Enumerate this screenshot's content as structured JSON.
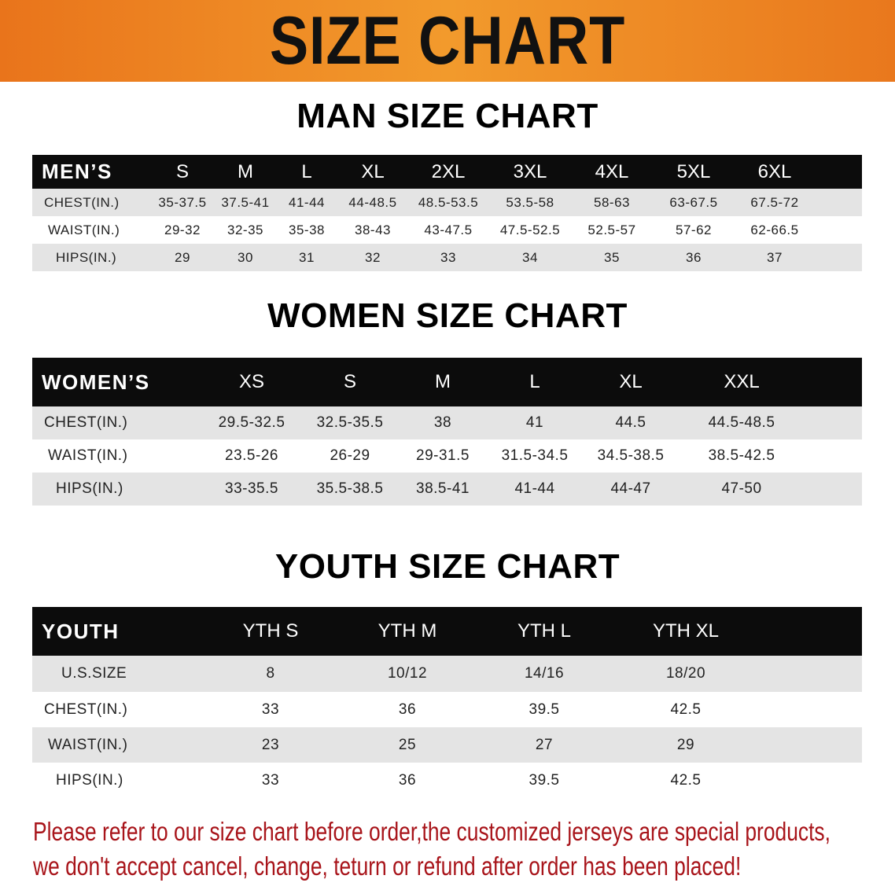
{
  "banner": {
    "title": "SIZE CHART",
    "color": "#ee8421"
  },
  "tables": [
    {
      "title": "MAN SIZE CHART",
      "header": [
        "MEN’S",
        "S",
        "M",
        "L",
        "XL",
        "2XL",
        "3XL",
        "4XL",
        "5XL",
        "6XL"
      ],
      "rows": [
        [
          "CHEST(IN.)",
          "35-37.5",
          "37.5-41",
          "41-44",
          "44-48.5",
          "48.5-53.5",
          "53.5-58",
          "58-63",
          "63-67.5",
          "67.5-72"
        ],
        [
          "WAIST(IN.)",
          "29-32",
          "32-35",
          "35-38",
          "38-43",
          "43-47.5",
          "47.5-52.5",
          "52.5-57",
          "57-62",
          "62-66.5"
        ],
        [
          "HIPS(IN.)",
          "29",
          "30",
          "31",
          "32",
          "33",
          "34",
          "35",
          "36",
          "37"
        ]
      ]
    },
    {
      "title": "WOMEN SIZE CHART",
      "header": [
        "WOMEN’S",
        "XS",
        "S",
        "M",
        "L",
        "XL",
        "XXL"
      ],
      "rows": [
        [
          "CHEST(IN.)",
          "29.5-32.5",
          "32.5-35.5",
          "38",
          "41",
          "44.5",
          "44.5-48.5"
        ],
        [
          "WAIST(IN.)",
          "23.5-26",
          "26-29",
          "29-31.5",
          "31.5-34.5",
          "34.5-38.5",
          "38.5-42.5"
        ],
        [
          "HIPS(IN.)",
          "33-35.5",
          "35.5-38.5",
          "38.5-41",
          "41-44",
          "44-47",
          "47-50"
        ]
      ]
    },
    {
      "title": "YOUTH SIZE CHART",
      "header": [
        "YOUTH",
        "YTH S",
        "YTH M",
        "YTH L",
        "YTH XL"
      ],
      "rows": [
        [
          "U.S.SIZE",
          "8",
          "10/12",
          "14/16",
          "18/20"
        ],
        [
          "CHEST(IN.)",
          "33",
          "36",
          "39.5",
          "42.5"
        ],
        [
          "WAIST(IN.)",
          "23",
          "25",
          "27",
          "29"
        ],
        [
          "HIPS(IN.)",
          "33",
          "36",
          "39.5",
          "42.5"
        ]
      ]
    }
  ],
  "footer": {
    "line1": "Please refer to our size chart before order,the customized jerseys are special products,",
    "line2": "we don't accept cancel, change, teturn or refund after order has been placed!",
    "color": "#a8141a"
  }
}
